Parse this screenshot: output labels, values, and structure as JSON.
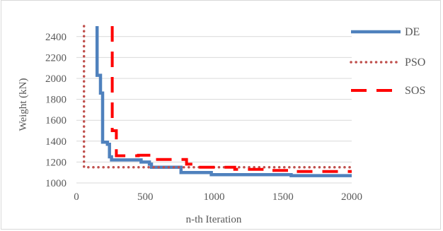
{
  "chart_data": {
    "type": "line",
    "title": "",
    "xlabel": "n-th Iteration",
    "ylabel": "Weight (kN)",
    "xlim": [
      0,
      2000
    ],
    "ylim": [
      1000,
      2500
    ],
    "x_ticks": [
      0,
      500,
      1000,
      1500,
      2000
    ],
    "y_ticks": [
      1000,
      1200,
      1400,
      1600,
      1800,
      2000,
      2200,
      2400
    ],
    "grid": "horizontal",
    "legend_position": "right",
    "series": [
      {
        "name": "DE",
        "color": "#4f81bd",
        "style": "solid",
        "points": [
          [
            150,
            2500
          ],
          [
            150,
            2030
          ],
          [
            175,
            2030
          ],
          [
            175,
            1860
          ],
          [
            190,
            1860
          ],
          [
            190,
            1390
          ],
          [
            225,
            1390
          ],
          [
            225,
            1370
          ],
          [
            240,
            1370
          ],
          [
            240,
            1250
          ],
          [
            255,
            1250
          ],
          [
            255,
            1220
          ],
          [
            470,
            1220
          ],
          [
            470,
            1200
          ],
          [
            530,
            1200
          ],
          [
            530,
            1180
          ],
          [
            545,
            1180
          ],
          [
            545,
            1150
          ],
          [
            760,
            1150
          ],
          [
            760,
            1100
          ],
          [
            980,
            1100
          ],
          [
            980,
            1080
          ],
          [
            1560,
            1080
          ],
          [
            1560,
            1070
          ],
          [
            2000,
            1070
          ]
        ]
      },
      {
        "name": "PSO",
        "color": "#c0504d",
        "style": "dotted",
        "points": [
          [
            55,
            2500
          ],
          [
            55,
            1150
          ],
          [
            2000,
            1150
          ]
        ]
      },
      {
        "name": "SOS",
        "color": "#ff0000",
        "style": "dashed",
        "points": [
          [
            260,
            2500
          ],
          [
            260,
            1500
          ],
          [
            290,
            1500
          ],
          [
            290,
            1260
          ],
          [
            450,
            1260
          ],
          [
            450,
            1265
          ],
          [
            560,
            1265
          ],
          [
            560,
            1225
          ],
          [
            800,
            1225
          ],
          [
            800,
            1180
          ],
          [
            860,
            1180
          ],
          [
            860,
            1150
          ],
          [
            1150,
            1150
          ],
          [
            1150,
            1130
          ],
          [
            1380,
            1130
          ],
          [
            1380,
            1120
          ],
          [
            1600,
            1120
          ],
          [
            1600,
            1110
          ],
          [
            2000,
            1110
          ]
        ]
      }
    ]
  }
}
